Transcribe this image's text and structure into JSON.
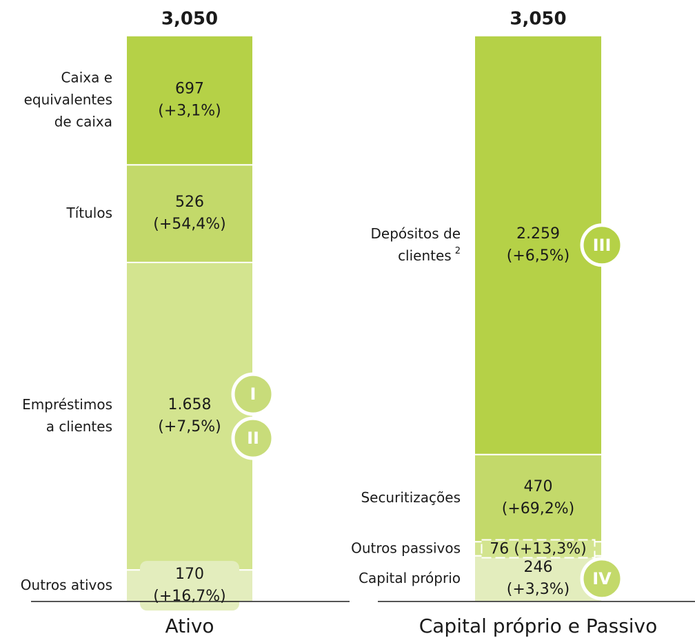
{
  "chart_data": {
    "type": "stacked_bar",
    "columns": [
      {
        "name": "Ativo",
        "total": {
          "value": 3050,
          "label": "3,050"
        },
        "segments": [
          {
            "name": "Caixa e\nequivalentes\nde caixa",
            "value": 697,
            "change": "(+3,1%)",
            "color": "#b5d147",
            "label_color": "#ffffff"
          },
          {
            "name": "Títulos",
            "value": 526,
            "change": "(+54,4%)",
            "color": "#c3d96a",
            "label_color": "#1a1a1a"
          },
          {
            "name": "Empréstimos\na clientes",
            "value": 1658,
            "value_label": "1.658",
            "change": "(+7,5%)",
            "color": "#d3e48f",
            "label_color": "#1a1a1a",
            "badges": [
              "I",
              "II"
            ],
            "badge_color": "#c8dc7a"
          },
          {
            "name": "Outros ativos",
            "value": 170,
            "change": "(+16,7%)",
            "color": "#e3edbd",
            "label_color": "#1a1a1a"
          }
        ]
      },
      {
        "name": "Capital próprio e Passivo",
        "total": {
          "value": 3050,
          "label": "3,050"
        },
        "segments": [
          {
            "name": "Depósitos de\nclientes",
            "note": "2",
            "value": 2259,
            "value_label": "2.259",
            "change": "(+6,5%)",
            "color": "#b5d147",
            "label_color": "#1a1a1a",
            "badges": [
              "III"
            ],
            "badge_color": "#b5d147"
          },
          {
            "name": "Securitizações",
            "value": 470,
            "change": "(+69,2%)",
            "color": "#c3d96a",
            "label_color": "#1a1a1a"
          },
          {
            "name": "Outros passivos",
            "value": 76,
            "change": "(+13,3%)",
            "color": "#d3e48f",
            "label_color": "#1a1a1a"
          },
          {
            "name": "Capital próprio",
            "value": 246,
            "change": "(+3,3%)",
            "color": "#e3edbd",
            "label_color": "#1a1a1a",
            "badges": [
              "IV"
            ],
            "badge_color": "#c3d96a"
          }
        ]
      }
    ]
  }
}
